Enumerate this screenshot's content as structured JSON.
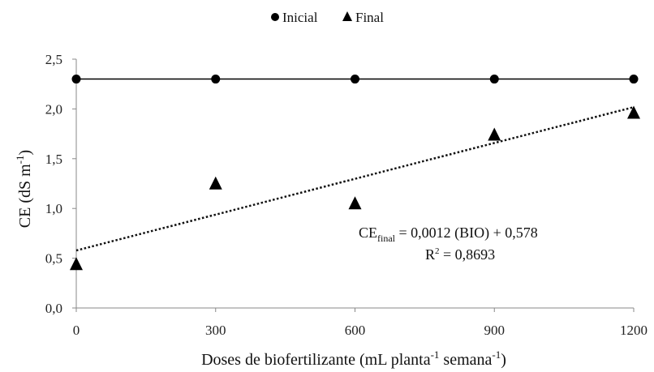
{
  "chart_data": {
    "type": "scatter",
    "x": [
      0,
      300,
      600,
      900,
      1200
    ],
    "series": [
      {
        "name": "Inicial",
        "marker": "circle",
        "line": "solid",
        "values": [
          2.3,
          2.3,
          2.3,
          2.3,
          2.3
        ]
      },
      {
        "name": "Final",
        "marker": "triangle",
        "line": "none",
        "values": [
          0.43,
          1.24,
          1.04,
          1.73,
          1.95
        ]
      }
    ],
    "trendline": {
      "series": "Final",
      "style": "dotted",
      "slope": 0.0012,
      "intercept": 0.578,
      "equation": {
        "lhs": "CE",
        "sub": "final",
        "rhs": " = 0,0012 (BIO) + 0,578"
      },
      "r2": {
        "lhs": "R",
        "sup": "2",
        "rhs": " = 0,8693"
      }
    },
    "xlabel": {
      "text": "Doses de biofertilizante (mL planta",
      "sup1": "-1",
      "mid": " semana",
      "sup2": "-1",
      "end": ")"
    },
    "ylabel": {
      "text": "CE (dS m",
      "sup": "-1",
      "end": ")"
    },
    "xticks": [
      0,
      300,
      600,
      900,
      1200
    ],
    "xtick_labels": [
      "0",
      "300",
      "600",
      "900",
      "1200"
    ],
    "yticks": [
      0,
      0.5,
      1.0,
      1.5,
      2.0,
      2.5
    ],
    "ytick_labels": [
      "0,0",
      "0,5",
      "1,0",
      "1,5",
      "2,0",
      "2,5"
    ],
    "xlim": [
      0,
      1200
    ],
    "ylim": [
      0,
      2.5
    ],
    "grid": false,
    "legend_position": "top-center",
    "colors": {
      "series": "#000000",
      "axis": "#888888"
    }
  }
}
